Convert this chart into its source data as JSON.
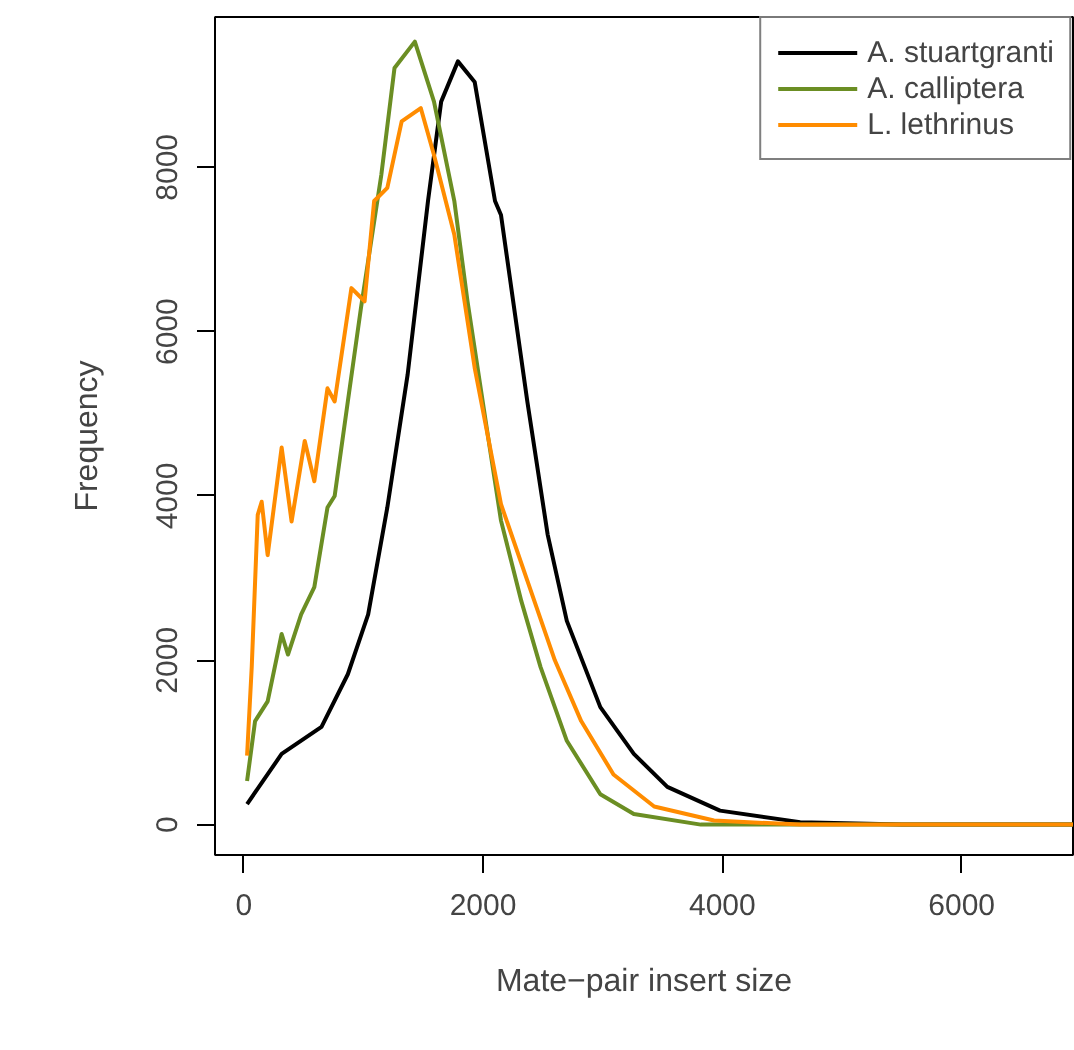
{
  "chart_data": {
    "type": "line",
    "xlabel": "Mate−pair insert size",
    "ylabel": "Frequency",
    "xlim": [
      -240,
      6930
    ],
    "ylim": [
      -370,
      9830
    ],
    "xticks": [
      0,
      2000,
      4000,
      6000
    ],
    "yticks": [
      0,
      2000,
      4000,
      6000,
      8000
    ],
    "grid": false,
    "legend": "top right",
    "line_style": "solid",
    "marker": "none",
    "series": [
      {
        "name": "A. stuartgranti",
        "color": "#000000",
        "x": [
          28,
          317,
          650,
          870,
          1040,
          1200,
          1370,
          1540,
          1650,
          1790,
          1930,
          2100,
          2150,
          2370,
          2540,
          2700,
          2980,
          3260,
          3540,
          3980,
          4650,
          5500,
          6930
        ],
        "values": [
          250,
          860,
          1190,
          1830,
          2560,
          3860,
          5480,
          7590,
          8800,
          9290,
          9040,
          7590,
          7420,
          5150,
          3530,
          2480,
          1430,
          860,
          460,
          170,
          30,
          0,
          0
        ]
      },
      {
        "name": "A. calliptera",
        "color": "#6b8e23",
        "x": [
          28,
          95,
          200,
          317,
          370,
          480,
          590,
          700,
          760,
          870,
          980,
          1150,
          1260,
          1430,
          1590,
          1760,
          1870,
          2040,
          2150,
          2320,
          2480,
          2700,
          2980,
          3260,
          3820,
          6930
        ],
        "values": [
          530,
          1260,
          1500,
          2320,
          2070,
          2560,
          2890,
          3860,
          4000,
          5150,
          6290,
          7910,
          9210,
          9530,
          8800,
          7590,
          6370,
          4740,
          3700,
          2720,
          1920,
          1020,
          370,
          130,
          0,
          0
        ]
      },
      {
        "name": "L. lethrinus",
        "color": "#ff8c00",
        "x": [
          28,
          67,
          117,
          150,
          200,
          317,
          400,
          510,
          590,
          700,
          760,
          900,
          1010,
          1090,
          1200,
          1320,
          1480,
          1590,
          1760,
          1930,
          2150,
          2370,
          2600,
          2820,
          3090,
          3430,
          3930,
          4650,
          6930
        ],
        "values": [
          840,
          1920,
          3770,
          3930,
          3280,
          4590,
          3690,
          4670,
          4180,
          5310,
          5150,
          6530,
          6370,
          7590,
          7750,
          8560,
          8720,
          8150,
          7180,
          5560,
          3900,
          2970,
          2000,
          1260,
          610,
          220,
          50,
          0,
          0
        ]
      }
    ]
  }
}
